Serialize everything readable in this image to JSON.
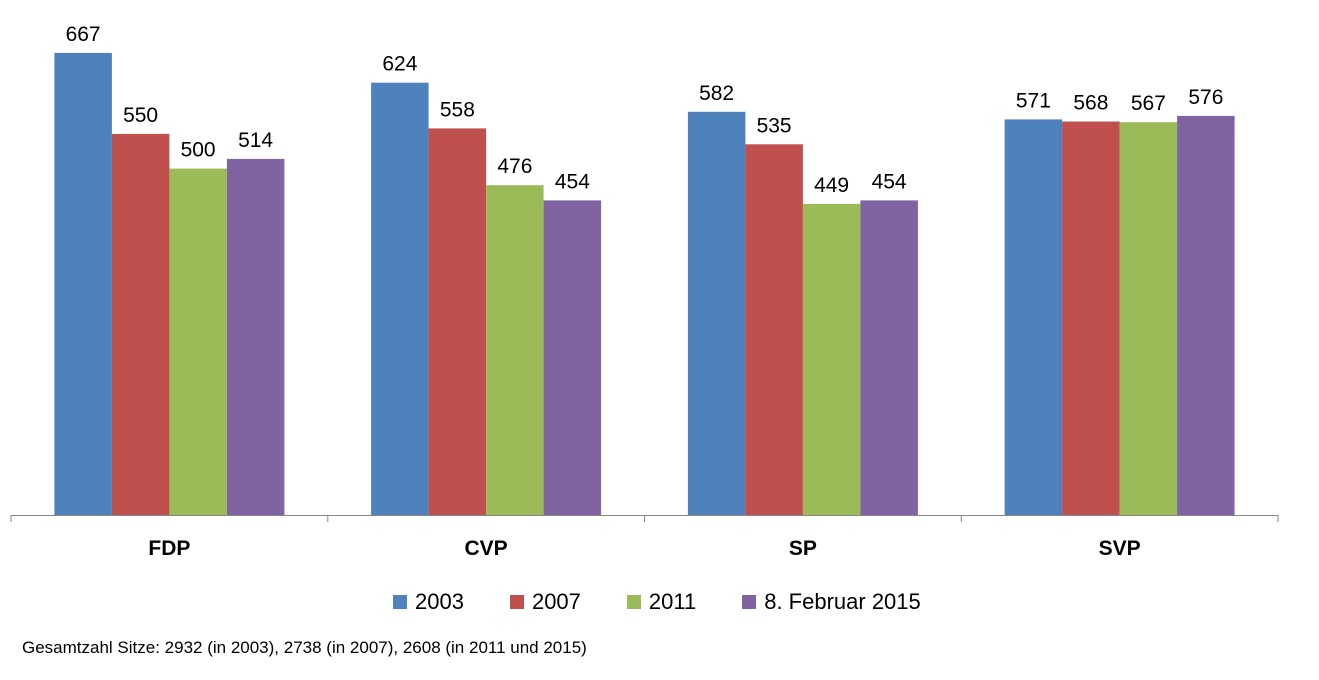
{
  "chart_data": {
    "type": "bar",
    "categories": [
      "FDP",
      "CVP",
      "SP",
      "SVP"
    ],
    "series": [
      {
        "name": "2003",
        "color": "#4F81BD",
        "values": [
          667,
          624,
          582,
          571
        ]
      },
      {
        "name": "2007",
        "color": "#C0504D",
        "values": [
          550,
          558,
          535,
          568
        ]
      },
      {
        "name": "2011",
        "color": "#9BBB59",
        "values": [
          500,
          476,
          449,
          567
        ]
      },
      {
        "name": "8. Februar 2015",
        "color": "#8064A2",
        "values": [
          514,
          454,
          454,
          576
        ]
      }
    ],
    "ylim": [
      0,
      700
    ],
    "grid": false,
    "legend_position": "bottom",
    "data_labels": true
  },
  "footnote": "Gesamtzahl Sitze: 2932 (in 2003), 2738 (in 2007), 2608 (in 2011 und 2015)"
}
